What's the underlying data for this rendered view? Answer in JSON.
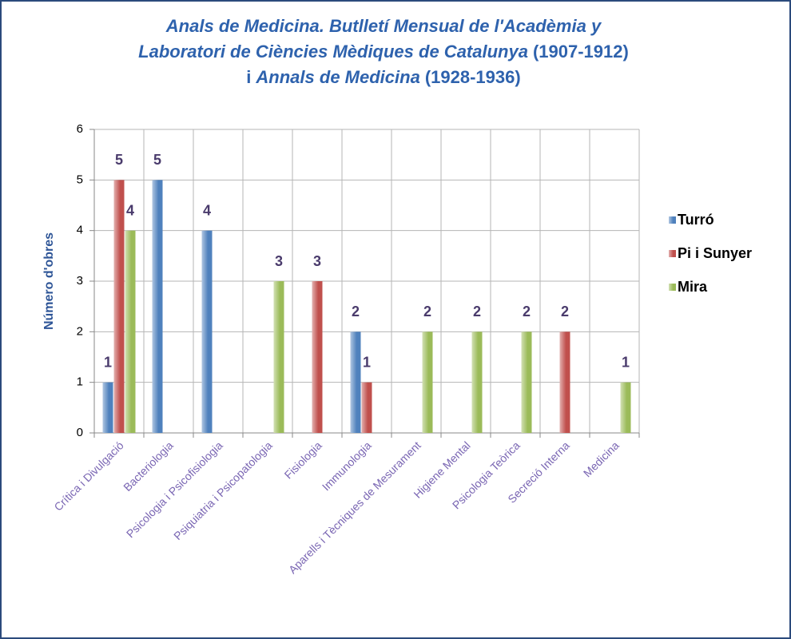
{
  "chart_data": {
    "type": "bar",
    "title": [
      [
        "Anals de Medicina. Butlletí Mensual de l'Acadèmia y"
      ],
      [
        "Laboratori de Ciències Mèdiques de Catalunya",
        "(1907-1912)"
      ],
      [
        "i",
        "Annals de Medicina",
        "(1928-1936)"
      ]
    ],
    "y_label": "Número d'obres",
    "categories": [
      "Crítica i Divulgació",
      "Bacteriologia",
      "Psicologia i Psicofisiologia",
      "Psiquiatria i Psicopatologia",
      "Fisiologia",
      "Immunologia",
      "Aparells i Tècniques de Mesurament",
      "Higiene Mental",
      "Psicologia Teòrica",
      "Secreció Interna",
      "Medicina"
    ],
    "series": [
      {
        "name": "Turró",
        "color": "#4f81bd",
        "values": [
          1,
          5,
          4,
          null,
          null,
          2,
          null,
          null,
          null,
          null,
          null
        ]
      },
      {
        "name": "Pi i Sunyer",
        "color": "#c0504d",
        "values": [
          5,
          null,
          null,
          null,
          3,
          1,
          null,
          null,
          null,
          2,
          null
        ]
      },
      {
        "name": "Mira",
        "color": "#9bbb59",
        "values": [
          4,
          null,
          null,
          3,
          null,
          null,
          2,
          2,
          2,
          null,
          1
        ]
      }
    ],
    "ylim": [
      0,
      6
    ],
    "yticks": [
      0,
      1,
      2,
      3,
      4,
      5,
      6
    ],
    "grid": true,
    "legend": "right"
  }
}
